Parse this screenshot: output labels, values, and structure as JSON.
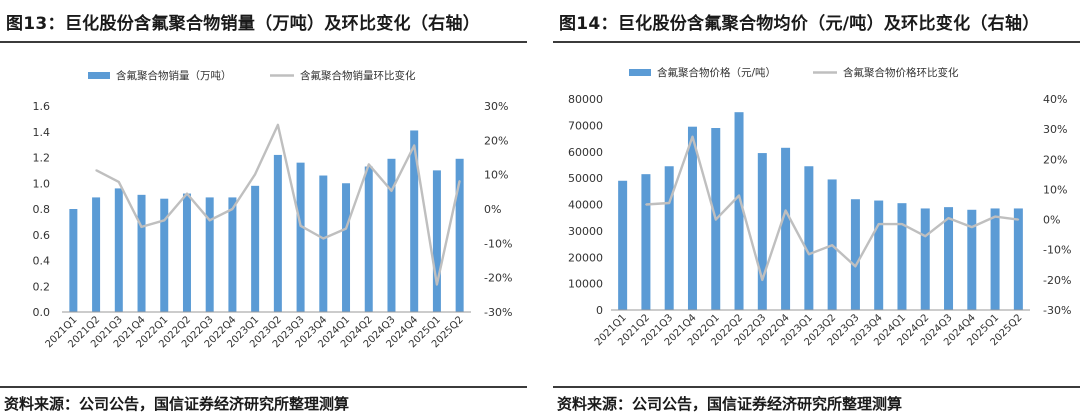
{
  "charts": [
    {
      "title": "图13：巨化股份含氟聚合物销量（万吨）及环比变化（右轴）",
      "source": "资料来源：公司公告，国信证券经济研究所整理测算",
      "legend": {
        "bar": "含氟聚合物销量（万吨）",
        "line": "含氟聚合物销量环比变化"
      }
    },
    {
      "title": "图14：巨化股份含氟聚合物均价（元/吨）及环比变化（右轴）",
      "source": "资料来源：公司公告，国信证券经济研究所整理测算",
      "legend": {
        "bar": "含氟聚合物价格（元/吨）",
        "line": "含氟聚合物价格环比变化"
      }
    }
  ],
  "colors": {
    "bar": "#5b9bd5",
    "line": "#bfbfbf",
    "axis_text": "#333333"
  },
  "chart_data": [
    {
      "type": "bar",
      "categories": [
        "2021Q1",
        "2021Q2",
        "2021Q3",
        "2021Q4",
        "2022Q1",
        "2022Q2",
        "2022Q3",
        "2022Q4",
        "2023Q1",
        "2023Q2",
        "2023Q3",
        "2023Q4",
        "2024Q1",
        "2024Q2",
        "2024Q3",
        "2024Q4",
        "2025Q1",
        "2025Q2"
      ],
      "series": [
        {
          "name": "含氟聚合物销量（万吨）",
          "type": "bar",
          "axis": "left",
          "values": [
            0.8,
            0.89,
            0.96,
            0.91,
            0.88,
            0.92,
            0.89,
            0.89,
            0.98,
            1.22,
            1.16,
            1.06,
            1.0,
            1.13,
            1.19,
            1.41,
            1.1,
            1.19
          ]
        },
        {
          "name": "含氟聚合物销量环比变化",
          "type": "line",
          "axis": "right",
          "values": [
            null,
            11.3,
            7.9,
            -5.2,
            -3.3,
            4.5,
            -3.3,
            0.0,
            10.1,
            24.5,
            -4.9,
            -8.6,
            -5.7,
            13.0,
            5.3,
            18.5,
            -22.0,
            8.2
          ]
        }
      ],
      "ylim": [
        0,
        1.6
      ],
      "yticks": [
        "0.0",
        "0.2",
        "0.4",
        "0.6",
        "0.8",
        "1.0",
        "1.2",
        "1.4",
        "1.6"
      ],
      "y2lim": [
        -30,
        30
      ],
      "y2ticks": [
        "-30%",
        "-20%",
        "-10%",
        "0%",
        "10%",
        "20%",
        "30%"
      ],
      "legend_position": "top-center",
      "grid": false
    },
    {
      "type": "bar",
      "categories": [
        "2021Q1",
        "2021Q2",
        "2021Q3",
        "2021Q4",
        "2022Q1",
        "2022Q2",
        "2022Q3",
        "2022Q4",
        "2023Q1",
        "2023Q2",
        "2023Q3",
        "2023Q4",
        "2024Q1",
        "2024Q2",
        "2024Q3",
        "2024Q4",
        "2025Q1",
        "2025Q2"
      ],
      "series": [
        {
          "name": "含氟聚合物价格（元/吨）",
          "type": "bar",
          "axis": "left",
          "values": [
            49000,
            51500,
            54500,
            69500,
            69000,
            75000,
            59500,
            61500,
            54500,
            49500,
            42000,
            41500,
            40500,
            38500,
            39000,
            38000,
            38500,
            38500
          ]
        },
        {
          "name": "含氟聚合物价格环比变化",
          "type": "line",
          "axis": "right",
          "values": [
            null,
            5.0,
            5.5,
            27.5,
            0.0,
            8.0,
            -20.0,
            3.0,
            -11.5,
            -8.5,
            -15.5,
            -1.5,
            -1.5,
            -5.5,
            0.5,
            -2.5,
            1.0,
            0.0
          ]
        }
      ],
      "ylim": [
        0,
        80000
      ],
      "yticks": [
        "0",
        "10000",
        "20000",
        "30000",
        "40000",
        "50000",
        "60000",
        "70000",
        "80000"
      ],
      "y2lim": [
        -30,
        40
      ],
      "y2ticks": [
        "-30%",
        "-20%",
        "-10%",
        "0%",
        "10%",
        "20%",
        "30%",
        "40%"
      ],
      "legend_position": "top-center",
      "grid": false
    }
  ]
}
